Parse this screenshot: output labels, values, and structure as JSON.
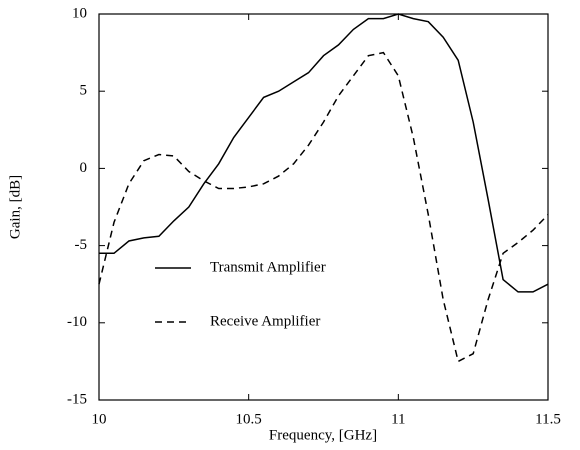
{
  "chart_data": {
    "type": "line",
    "x_label": "Frequency, [GHz]",
    "y_label": "Gain, [dB]",
    "x": [
      10.0,
      10.05,
      10.1,
      10.15,
      10.2,
      10.25,
      10.3,
      10.35,
      10.4,
      10.45,
      10.5,
      10.55,
      10.6,
      10.65,
      10.7,
      10.75,
      10.8,
      10.85,
      10.9,
      10.95,
      11.0,
      11.05,
      11.1,
      11.15,
      11.2,
      11.25,
      11.3,
      11.35,
      11.4,
      11.45,
      11.5
    ],
    "series": [
      {
        "name": "Transmit Amplifier",
        "color": "#000000",
        "dash": "solid",
        "values": [
          -5.5,
          -5.5,
          -4.7,
          -4.5,
          -4.4,
          -3.4,
          -2.5,
          -1.0,
          0.3,
          2.0,
          3.3,
          4.6,
          5.0,
          5.6,
          6.2,
          7.3,
          8.0,
          9.0,
          9.7,
          9.7,
          10.0,
          9.7,
          9.5,
          8.5,
          7.0,
          3.0,
          -2.0,
          -7.2,
          -8.0,
          -8.0,
          -7.5
        ]
      },
      {
        "name": "Receive Amplifier",
        "color": "#000000",
        "dash": "dashed",
        "values": [
          -7.5,
          -3.5,
          -1.0,
          0.5,
          0.9,
          0.8,
          -0.2,
          -0.8,
          -1.3,
          -1.3,
          -1.2,
          -1.0,
          -0.5,
          0.3,
          1.5,
          3.0,
          4.7,
          6.0,
          7.3,
          7.5,
          6.0,
          2.0,
          -3.0,
          -8.5,
          -12.5,
          -12.0,
          -8.5,
          -5.5,
          -4.8,
          -4.0,
          -3.0
        ]
      }
    ],
    "xlim": [
      10,
      11.5
    ],
    "xticks": [
      10,
      10.5,
      11,
      11.5
    ],
    "ylim": [
      -15,
      10
    ],
    "yticks": [
      -15,
      -10,
      -5,
      0,
      5,
      10
    ],
    "grid": false,
    "legend": "lower left"
  }
}
